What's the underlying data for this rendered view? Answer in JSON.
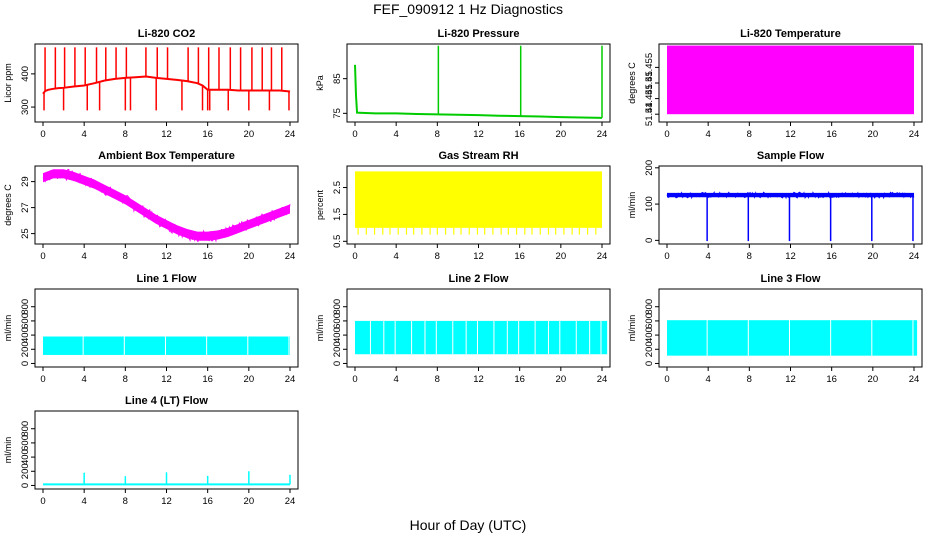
{
  "figure": {
    "title": "FEF_090912  1 Hz Diagnostics",
    "xlabel": "Hour of Day (UTC)"
  },
  "chart_data": [
    {
      "type": "line",
      "title": "Li-820 CO2",
      "ylabel": "Licor ppm",
      "color": "#ff0000",
      "xlim": [
        0,
        24
      ],
      "ylim": [
        255,
        490
      ],
      "xticks": [
        0,
        4,
        8,
        12,
        16,
        20,
        24
      ],
      "yticks": [
        300,
        400
      ],
      "x": [
        0,
        0.2,
        0.5,
        1,
        1.5,
        2,
        3,
        4,
        5,
        6,
        7,
        8,
        9,
        10,
        11,
        12,
        13,
        14,
        15,
        15.5,
        16,
        17,
        18,
        19,
        20,
        21,
        22,
        23,
        24
      ],
      "series": [
        {
          "values": [
            340,
            348,
            352,
            355,
            357,
            358,
            362,
            365,
            372,
            380,
            385,
            388,
            390,
            392,
            388,
            385,
            382,
            378,
            372,
            365,
            352,
            352,
            352,
            350,
            350,
            350,
            350,
            350,
            347
          ]
        }
      ],
      "spike_x": [
        0.2,
        1.2,
        2.1,
        3.1,
        4.1,
        5.2,
        6.1,
        7.1,
        8.1,
        10.0,
        11.1,
        12.1,
        14.1,
        15.1,
        16.1,
        17.1,
        18.2,
        19.2,
        20.3,
        21.3,
        22.2,
        23.2
      ],
      "spike_top": 480,
      "dip_x": [
        0.1,
        2.0,
        4.3,
        5.5,
        8.0,
        8.5,
        11.0,
        13.5,
        15.5,
        16.0,
        16.2,
        18.0,
        20.0,
        22.0,
        23.9
      ],
      "dip_bottom": 290
    },
    {
      "type": "line",
      "title": "Li-820 Pressure",
      "ylabel": "kPa",
      "color": "#00cc00",
      "xlim": [
        0,
        24
      ],
      "ylim": [
        72.5,
        95
      ],
      "xticks": [
        0,
        4,
        8,
        12,
        16,
        20,
        24
      ],
      "yticks": [
        75,
        85
      ],
      "x": [
        0,
        0.1,
        0.2,
        1,
        2,
        4,
        6,
        8,
        10,
        12,
        14,
        16,
        18,
        20,
        22,
        24
      ],
      "series": [
        {
          "values": [
            89,
            80,
            75.2,
            75.1,
            75.0,
            75.0,
            74.8,
            74.7,
            74.6,
            74.5,
            74.3,
            74.2,
            74.1,
            73.9,
            73.8,
            73.7
          ]
        }
      ],
      "spike_x": [
        8.1,
        16.1,
        24.0
      ],
      "spike_top": 94.5,
      "dip_x": [],
      "dip_bottom": 0
    },
    {
      "type": "area",
      "title": "Li-820 Temperature",
      "ylabel": "degrees C",
      "color": "#ff00ff",
      "xlim": [
        0,
        24
      ],
      "ylim": [
        51.4375,
        51.4625
      ],
      "xticks": [
        0,
        4,
        8,
        12,
        16,
        20,
        24
      ],
      "yticks": [
        51.44,
        51.445,
        51.45,
        51.455
      ],
      "band": [
        51.44,
        51.462
      ],
      "band_x": [
        0,
        24
      ]
    },
    {
      "type": "line",
      "title": "Ambient Box Temperature",
      "ylabel": "degrees C",
      "color": "#ff00ff",
      "xlim": [
        0,
        24
      ],
      "ylim": [
        24.2,
        30.2
      ],
      "xticks": [
        0,
        4,
        8,
        12,
        16,
        20,
        24
      ],
      "yticks": [
        25,
        27,
        29
      ],
      "x": [
        0,
        1,
        2,
        3,
        4,
        5,
        6,
        7,
        8,
        9,
        10,
        11,
        12,
        13,
        14,
        15,
        16,
        17,
        18,
        19,
        20,
        21,
        22,
        23,
        24
      ],
      "series": [
        {
          "values": [
            29.3,
            29.6,
            29.6,
            29.4,
            29.1,
            28.8,
            28.4,
            28.0,
            27.6,
            27.1,
            26.6,
            26.1,
            25.7,
            25.3,
            25.0,
            24.8,
            24.8,
            24.9,
            25.1,
            25.4,
            25.7,
            26.0,
            26.3,
            26.6,
            26.9
          ]
        }
      ],
      "noise_band": 0.35
    },
    {
      "type": "area",
      "title": "Gas Stream RH",
      "ylabel": "percent",
      "color": "#ffff00",
      "xlim": [
        0,
        24
      ],
      "ylim": [
        0.4,
        3.3
      ],
      "xticks": [
        0,
        4,
        8,
        12,
        16,
        20,
        24
      ],
      "yticks": [
        0.5,
        1.5,
        2.5
      ],
      "band": [
        1.0,
        3.1
      ],
      "band_x": [
        0,
        24
      ],
      "dip_x": [
        0.3,
        1.1,
        1.9,
        2.7,
        3.4,
        4.2,
        5.0,
        5.7,
        6.5,
        7.3,
        8.0,
        8.8,
        9.6,
        10.3,
        11.1,
        11.9,
        12.6,
        13.4,
        14.2,
        14.9,
        15.7,
        16.5,
        17.2,
        18.0,
        18.8,
        19.5,
        20.3,
        21.1,
        21.8,
        22.6,
        23.4
      ],
      "dip_bottom": 0.75
    },
    {
      "type": "line",
      "title": "Sample Flow",
      "ylabel": "ml/min",
      "color": "#0000ff",
      "xlim": [
        0,
        24
      ],
      "ylim": [
        -10,
        205
      ],
      "xticks": [
        0,
        4,
        8,
        12,
        16,
        20,
        24
      ],
      "yticks": [
        0,
        100,
        200
      ],
      "x": [
        0,
        24
      ],
      "series": [
        {
          "values": [
            125,
            125
          ]
        }
      ],
      "noise_band": 6,
      "dip_x": [
        3.9,
        7.9,
        11.9,
        15.9,
        19.9,
        23.9
      ],
      "dip_bottom": -2
    },
    {
      "type": "area",
      "title": "Line 1 Flow",
      "ylabel": "ml/min",
      "color": "#00ffff",
      "xlim": [
        0,
        24
      ],
      "ylim": [
        -50,
        1050
      ],
      "xticks": [
        0,
        4,
        8,
        12,
        16,
        20,
        24
      ],
      "yticks": [
        0,
        200,
        400,
        600,
        800
      ],
      "band": [
        120,
        380
      ],
      "band_x": [
        0,
        24
      ],
      "gap_x": [
        3.9,
        7.9,
        11.9,
        15.9,
        19.9,
        23.9
      ]
    },
    {
      "type": "area",
      "title": "Line 2 Flow",
      "ylabel": "ml/min",
      "color": "#00ffff",
      "xlim": [
        0,
        24
      ],
      "ylim": [
        -50,
        1050
      ],
      "xticks": [
        0,
        4,
        8,
        12,
        16,
        20,
        24
      ],
      "yticks": [
        0,
        200,
        400,
        600,
        800
      ],
      "band": [
        130,
        600
      ],
      "band_x": [
        0,
        24.5
      ],
      "gap_x": [
        1.5,
        2.8,
        3.9,
        5.5,
        6.8,
        7.9,
        9.5,
        10.8,
        11.9,
        13.5,
        14.8,
        15.9,
        17.5,
        18.8,
        19.9,
        21.5,
        22.8,
        23.9
      ]
    },
    {
      "type": "area",
      "title": "Line 3 Flow",
      "ylabel": "ml/min",
      "color": "#00ffff",
      "xlim": [
        0,
        24
      ],
      "ylim": [
        -50,
        1050
      ],
      "xticks": [
        0,
        4,
        8,
        12,
        16,
        20,
        24
      ],
      "yticks": [
        0,
        200,
        400,
        600,
        800
      ],
      "band": [
        110,
        610
      ],
      "band_x": [
        0,
        24.3
      ],
      "gap_x": [
        3.9,
        7.9,
        11.9,
        15.9,
        19.9,
        23.9
      ]
    },
    {
      "type": "line",
      "title": "Line 4 (LT) Flow",
      "ylabel": "ml/min",
      "color": "#00ffff",
      "xlim": [
        0,
        24
      ],
      "ylim": [
        -50,
        1050
      ],
      "xticks": [
        0,
        4,
        8,
        12,
        16,
        20,
        24
      ],
      "yticks": [
        0,
        200,
        400,
        600,
        800
      ],
      "x": [
        0,
        24
      ],
      "series": [
        {
          "values": [
            15,
            15
          ]
        }
      ],
      "spike_x": [
        4.0,
        8.0,
        12.0,
        16.0,
        20.0,
        24.0
      ],
      "spike_heights": [
        180,
        130,
        185,
        135,
        200,
        150
      ]
    }
  ]
}
